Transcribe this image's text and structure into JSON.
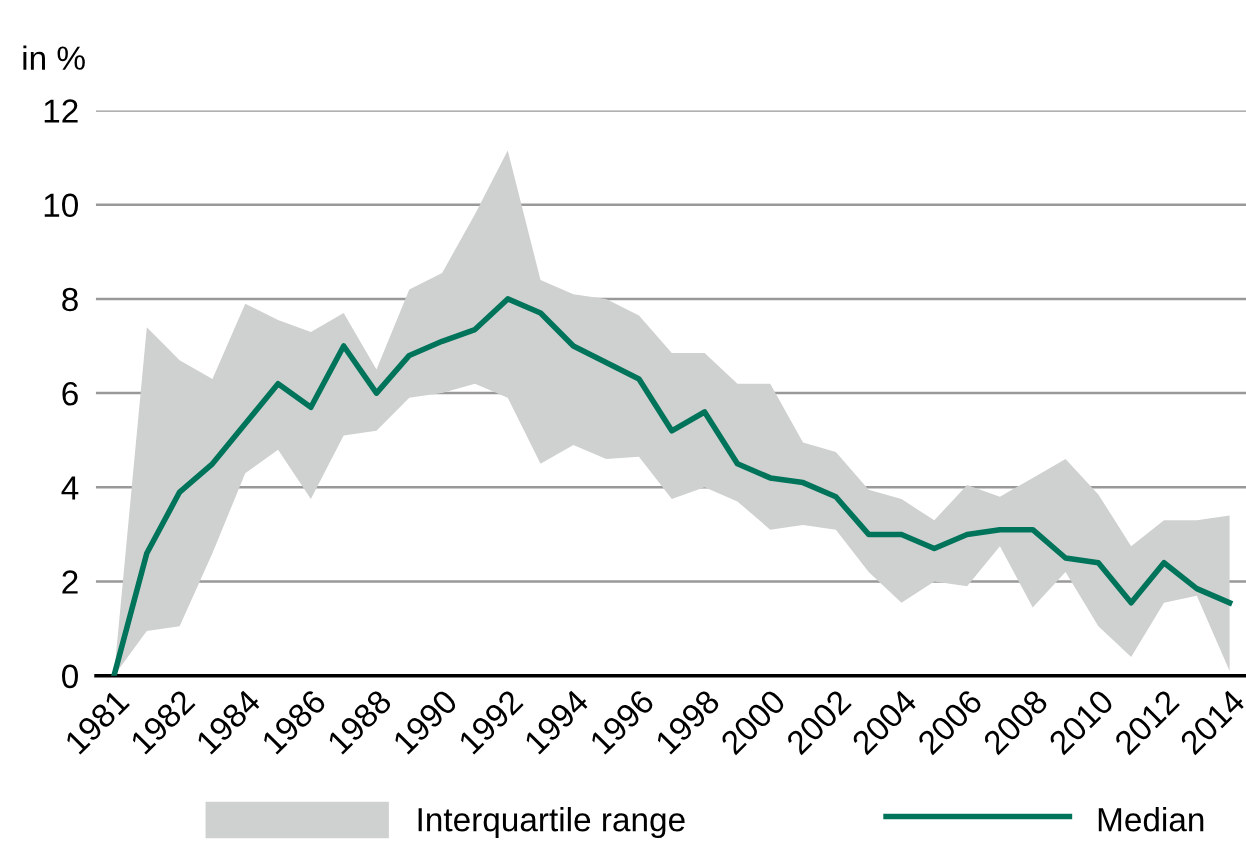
{
  "chart_data": {
    "type": "line",
    "ylabel": "in %",
    "annotations": [
      "Interquartile range"
    ],
    "categories": [
      "1981",
      null,
      "1982",
      null,
      "1984",
      null,
      "1986",
      null,
      "1988",
      null,
      "1990",
      null,
      "1992",
      null,
      "1994",
      null,
      "1996",
      null,
      "1998",
      null,
      "2000",
      null,
      "2002",
      null,
      "2004",
      null,
      "2006",
      null,
      "2008",
      null,
      "2010",
      null,
      "2012",
      null,
      "2014"
    ],
    "series": [
      {
        "name": "Median",
        "color": "#00745a",
        "values": [
          0,
          2.6,
          3.9,
          4.5,
          5.35,
          6.2,
          5.7,
          7.0,
          6.0,
          6.8,
          7.1,
          7.35,
          8.0,
          7.7,
          7.0,
          6.65,
          6.3,
          5.2,
          5.6,
          4.5,
          4.2,
          4.1,
          3.8,
          3.0,
          3.0,
          2.7,
          3.0,
          3.1,
          3.1,
          2.5,
          2.4,
          1.55,
          2.4,
          1.85,
          1.55
        ],
        "lower": [
          0,
          0.95,
          1.05,
          2.6,
          4.3,
          4.8,
          3.75,
          5.1,
          5.2,
          5.9,
          6.0,
          6.2,
          5.9,
          4.5,
          4.9,
          4.6,
          4.65,
          3.75,
          4.0,
          3.7,
          3.1,
          3.2,
          3.1,
          2.2,
          1.55,
          2.0,
          1.9,
          2.75,
          1.45,
          2.2,
          1.05,
          0.4,
          1.55,
          1.7,
          0.1
        ],
        "upper": [
          0,
          7.4,
          6.7,
          6.3,
          7.9,
          7.55,
          7.3,
          7.7,
          6.5,
          8.2,
          8.55,
          9.8,
          11.15,
          8.4,
          8.1,
          8.0,
          7.65,
          6.85,
          6.85,
          6.2,
          6.2,
          4.95,
          4.75,
          3.95,
          3.75,
          3.3,
          4.05,
          3.8,
          4.2,
          4.6,
          3.85,
          2.75,
          3.3,
          3.3,
          3.4
        ]
      }
    ],
    "ylim": [
      0,
      12
    ],
    "yticks": [
      0,
      2,
      4,
      6,
      8,
      10,
      12
    ],
    "grid": "y",
    "legend": "bottom"
  }
}
